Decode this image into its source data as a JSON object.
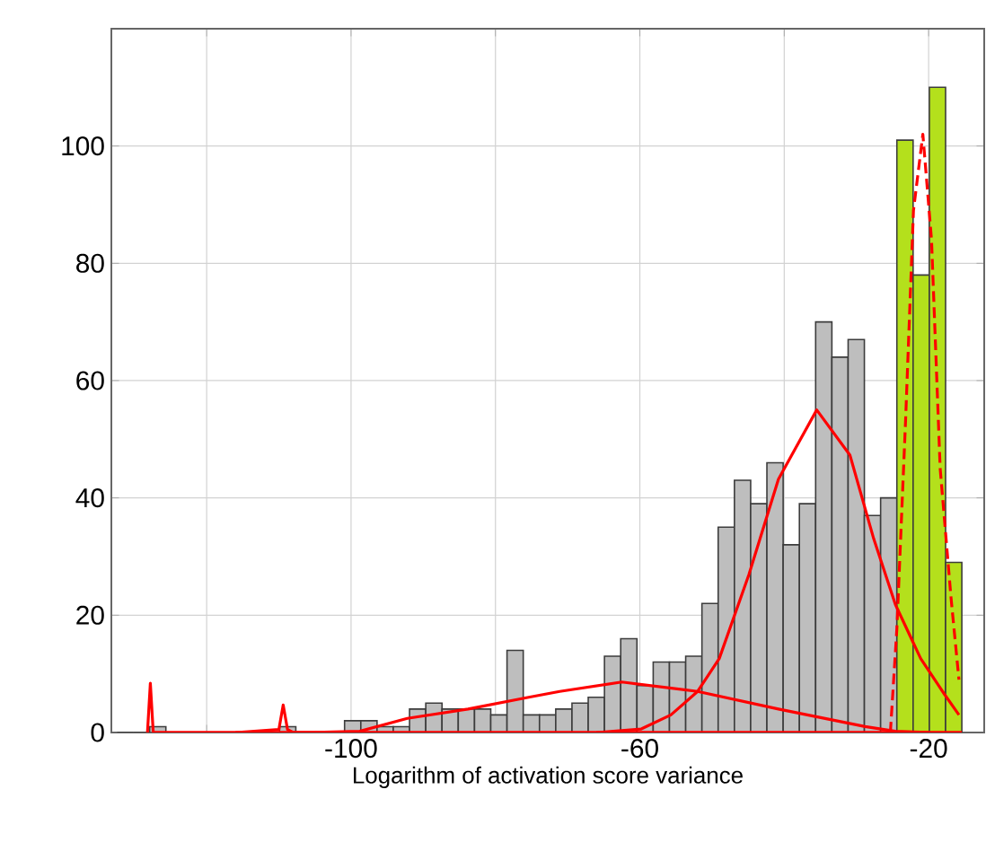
{
  "chart_data": {
    "type": "histogram",
    "xlabel": "Logarithm of activation score variance",
    "bins": [
      -132.4,
      -130.15,
      -127.9,
      -125.65,
      -123.4,
      -121.15,
      -118.9,
      -116.65,
      -114.4,
      -112.15,
      -109.9,
      -107.65,
      -105.4,
      -103.15,
      -100.9,
      -98.65,
      -96.4,
      -94.15,
      -91.9,
      -89.65,
      -87.4,
      -85.15,
      -82.9,
      -80.65,
      -78.4,
      -76.15,
      -73.9,
      -71.65,
      -69.4,
      -67.15,
      -64.9,
      -62.65,
      -60.4,
      -58.15,
      -55.9,
      -53.65,
      -51.4,
      -49.15,
      -46.9,
      -44.65,
      -42.4,
      -40.15,
      -37.9,
      -35.65,
      -33.4,
      -31.15,
      -28.9,
      -26.65,
      -24.4,
      -22.15,
      -19.9,
      -17.65,
      -15.4
    ],
    "series": [
      {
        "color": "#bebebe",
        "values": [
          0,
          0,
          1,
          0,
          0,
          0,
          0,
          0,
          0,
          0,
          1,
          0,
          0,
          0,
          2,
          2,
          1,
          1,
          4,
          5,
          4,
          4,
          4,
          3,
          14,
          3,
          3,
          4,
          5,
          6,
          13,
          16,
          8,
          12,
          12,
          13,
          22,
          35,
          43,
          39,
          46,
          32,
          39,
          70,
          64,
          67,
          37,
          40,
          null,
          null,
          null,
          null
        ]
      },
      {
        "color": "#b4e01c",
        "values": [
          null,
          null,
          null,
          null,
          null,
          null,
          null,
          null,
          null,
          null,
          null,
          null,
          null,
          null,
          null,
          null,
          null,
          null,
          null,
          null,
          null,
          null,
          null,
          null,
          null,
          null,
          null,
          null,
          null,
          null,
          null,
          null,
          null,
          null,
          null,
          null,
          null,
          null,
          null,
          null,
          null,
          null,
          null,
          null,
          null,
          null,
          null,
          null,
          101,
          78,
          110,
          29
        ]
      },
      {
        "type": "line",
        "color": "#ff0000",
        "line_style": "solid",
        "x": [
          -128.2,
          -127.8,
          -127.4,
          -15.4
        ],
        "values": [
          0,
          8.4,
          0,
          0
        ]
      },
      {
        "type": "line",
        "color": "#ff0000",
        "line_style": "solid",
        "x": [
          -116,
          -110,
          -109.4,
          -108.8,
          -108,
          -100
        ],
        "values": [
          0,
          0.5,
          4.7,
          0.5,
          0,
          0
        ]
      },
      {
        "type": "line",
        "color": "#ff0000",
        "line_style": "solid",
        "x": [
          -105,
          -98.8,
          -92.2,
          -83.8,
          -75.4,
          -71.1,
          -62.5,
          -52,
          -40.8,
          -28.8,
          -24.6,
          -20
        ],
        "values": [
          0,
          0.2,
          2.4,
          4,
          6,
          7,
          8.6,
          7,
          4,
          1,
          0.2,
          0
        ]
      },
      {
        "type": "line",
        "color": "#ff0000",
        "line_style": "solid",
        "x": [
          -66,
          -59.8,
          -55.7,
          -52,
          -49,
          -44.9,
          -40.8,
          -35.5,
          -30.9,
          -27.6,
          -24.6,
          -21.1,
          -17.8,
          -15.8
        ],
        "values": [
          0,
          0.6,
          3,
          7,
          12.6,
          26.9,
          43.2,
          55,
          47.3,
          33,
          21.8,
          12.6,
          6.5,
          3
        ]
      },
      {
        "type": "line",
        "color": "#ff0000",
        "line_style": "dashed",
        "x": [
          -25.3,
          -24.4,
          -23.2,
          -22.1,
          -20.8,
          -19.6,
          -18.4,
          -16.9,
          -15.8
        ],
        "values": [
          0,
          17.7,
          53,
          89,
          102,
          84,
          45,
          23,
          9
        ]
      }
    ],
    "xlim": [
      -133.2,
      -12.3
    ],
    "ylim": [
      0,
      120
    ],
    "xticks": [
      {
        "value": -120,
        "label": null
      },
      -100,
      {
        "value": -80,
        "label": null
      },
      -60,
      {
        "value": -40,
        "label": null
      },
      -20
    ],
    "yticks": [
      0,
      20,
      40,
      60,
      80,
      100
    ],
    "grid": true
  }
}
